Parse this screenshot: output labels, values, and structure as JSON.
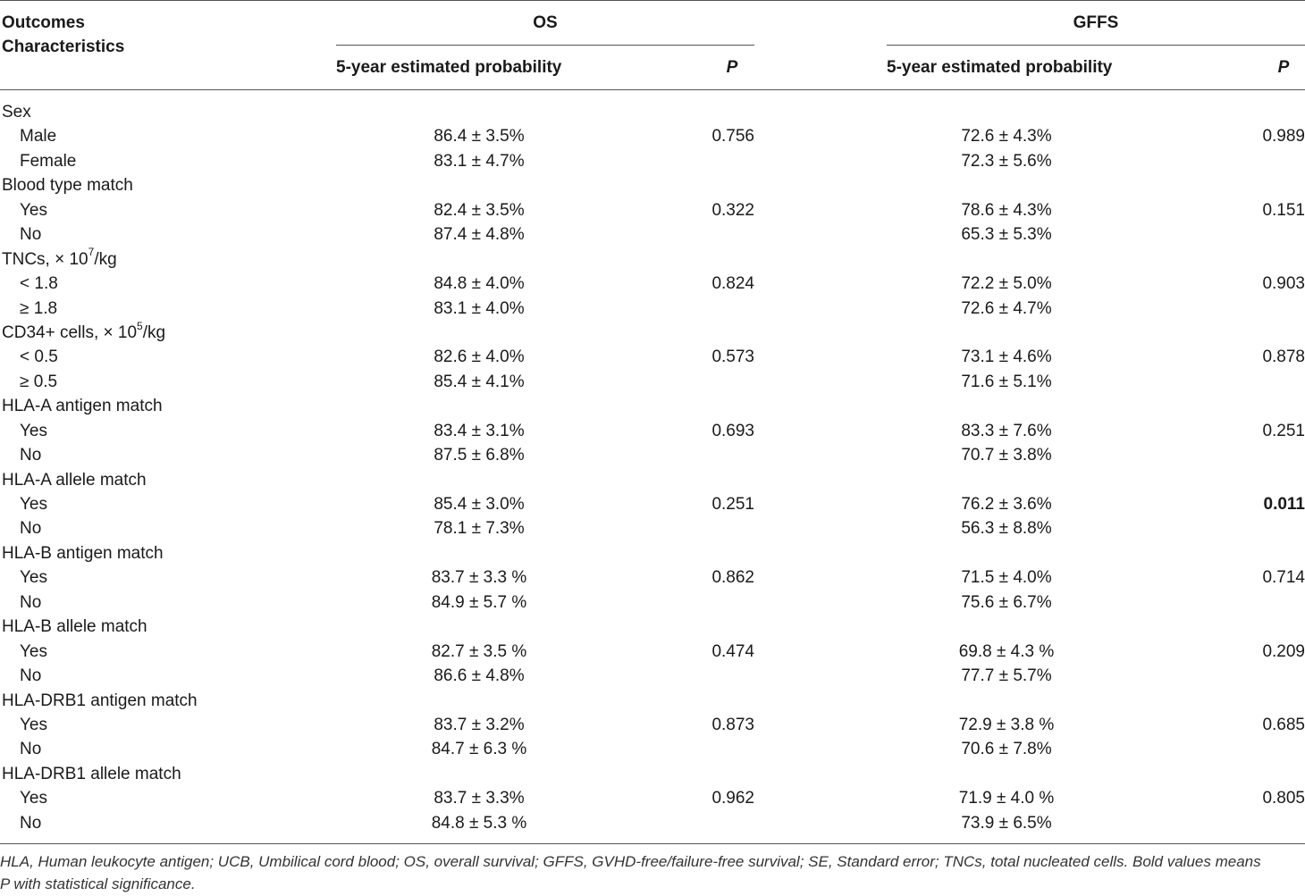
{
  "header": {
    "outcomes": "Outcomes",
    "characteristics": "Characteristics",
    "os": "OS",
    "gffs": "GFFS",
    "prob_label": "5-year estimated probability",
    "p_label": "P"
  },
  "rows": [
    {
      "type": "group",
      "label": "Sex"
    },
    {
      "type": "sub",
      "label": "Male",
      "os": "86.4 ± 3.5%",
      "os_p": "0.756",
      "gffs": "72.6 ± 4.3%",
      "gffs_p": "0.989"
    },
    {
      "type": "sub",
      "label": "Female",
      "os": "83.1 ± 4.7%",
      "os_p": "",
      "gffs": "72.3 ± 5.6%",
      "gffs_p": ""
    },
    {
      "type": "group",
      "label": "Blood type match"
    },
    {
      "type": "sub",
      "label": "Yes",
      "os": "82.4 ± 3.5%",
      "os_p": "0.322",
      "gffs": "78.6 ± 4.3%",
      "gffs_p": "0.151"
    },
    {
      "type": "sub",
      "label": "No",
      "os": "87.4 ± 4.8%",
      "os_p": "",
      "gffs": "65.3 ± 5.3%",
      "gffs_p": ""
    },
    {
      "type": "group",
      "label": "TNCs, × 10",
      "sup": "7",
      "label_tail": "/kg"
    },
    {
      "type": "sub",
      "label": "< 1.8",
      "os": "84.8 ± 4.0%",
      "os_p": "0.824",
      "gffs": "72.2 ± 5.0%",
      "gffs_p": "0.903"
    },
    {
      "type": "sub",
      "label": "≥ 1.8",
      "os": "83.1 ± 4.0%",
      "os_p": "",
      "gffs": "72.6 ± 4.7%",
      "gffs_p": ""
    },
    {
      "type": "group",
      "label": "CD34+ cells, × 10",
      "sup": "5",
      "label_tail": "/kg"
    },
    {
      "type": "sub",
      "label": "< 0.5",
      "os": "82.6 ± 4.0%",
      "os_p": "0.573",
      "gffs": "73.1 ± 4.6%",
      "gffs_p": "0.878"
    },
    {
      "type": "sub",
      "label": "≥ 0.5",
      "os": "85.4 ± 4.1%",
      "os_p": "",
      "gffs": "71.6 ± 5.1%",
      "gffs_p": ""
    },
    {
      "type": "group",
      "label": "HLA-A antigen match"
    },
    {
      "type": "sub",
      "label": "Yes",
      "os": "83.4 ± 3.1%",
      "os_p": "0.693",
      "gffs": "83.3 ± 7.6%",
      "gffs_p": "0.251"
    },
    {
      "type": "sub",
      "label": "No",
      "os": "87.5 ± 6.8%",
      "os_p": "",
      "gffs": "70.7 ± 3.8%",
      "gffs_p": ""
    },
    {
      "type": "group",
      "label": "HLA-A allele match"
    },
    {
      "type": "sub",
      "label": "Yes",
      "os": "85.4 ± 3.0%",
      "os_p": "0.251",
      "gffs": "76.2 ± 3.6%",
      "gffs_p": "0.011",
      "gffs_p_bold": true
    },
    {
      "type": "sub",
      "label": "No",
      "os": "78.1 ± 7.3%",
      "os_p": "",
      "gffs": "56.3 ± 8.8%",
      "gffs_p": ""
    },
    {
      "type": "group",
      "label": "HLA-B antigen match"
    },
    {
      "type": "sub",
      "label": "Yes",
      "os": "83.7 ± 3.3 %",
      "os_p": "0.862",
      "gffs": "71.5 ± 4.0%",
      "gffs_p": "0.714"
    },
    {
      "type": "sub",
      "label": "No",
      "os": "84.9 ± 5.7 %",
      "os_p": "",
      "gffs": "75.6 ± 6.7%",
      "gffs_p": ""
    },
    {
      "type": "group",
      "label": "HLA-B allele match"
    },
    {
      "type": "sub",
      "label": "Yes",
      "os": "82.7 ± 3.5 %",
      "os_p": "0.474",
      "gffs": "69.8 ± 4.3 %",
      "gffs_p": "0.209"
    },
    {
      "type": "sub",
      "label": "No",
      "os": "86.6 ± 4.8%",
      "os_p": "",
      "gffs": "77.7 ± 5.7%",
      "gffs_p": ""
    },
    {
      "type": "group",
      "label": "HLA-DRB1 antigen match"
    },
    {
      "type": "sub",
      "label": "Yes",
      "os": "83.7 ± 3.2%",
      "os_p": "0.873",
      "gffs": "72.9 ± 3.8 %",
      "gffs_p": "0.685"
    },
    {
      "type": "sub",
      "label": "No",
      "os": "84.7 ± 6.3 %",
      "os_p": "",
      "gffs": "70.6 ± 7.8%",
      "gffs_p": ""
    },
    {
      "type": "group",
      "label": "HLA-DRB1 allele match"
    },
    {
      "type": "sub",
      "label": "Yes",
      "os": "83.7 ± 3.3%",
      "os_p": "0.962",
      "gffs": "71.9 ± 4.0 %",
      "gffs_p": "0.805"
    },
    {
      "type": "sub",
      "label": "No",
      "os": "84.8 ± 5.3 %",
      "os_p": "",
      "gffs": "73.9 ± 6.5%",
      "gffs_p": ""
    }
  ],
  "footnote": {
    "line1": "HLA, Human leukocyte antigen; UCB, Umbilical cord blood; OS, overall survival; GFFS, GVHD-free/failure-free survival; SE, Standard error; TNCs, total nucleated cells. Bold values means",
    "line2": "P with statistical significance."
  }
}
